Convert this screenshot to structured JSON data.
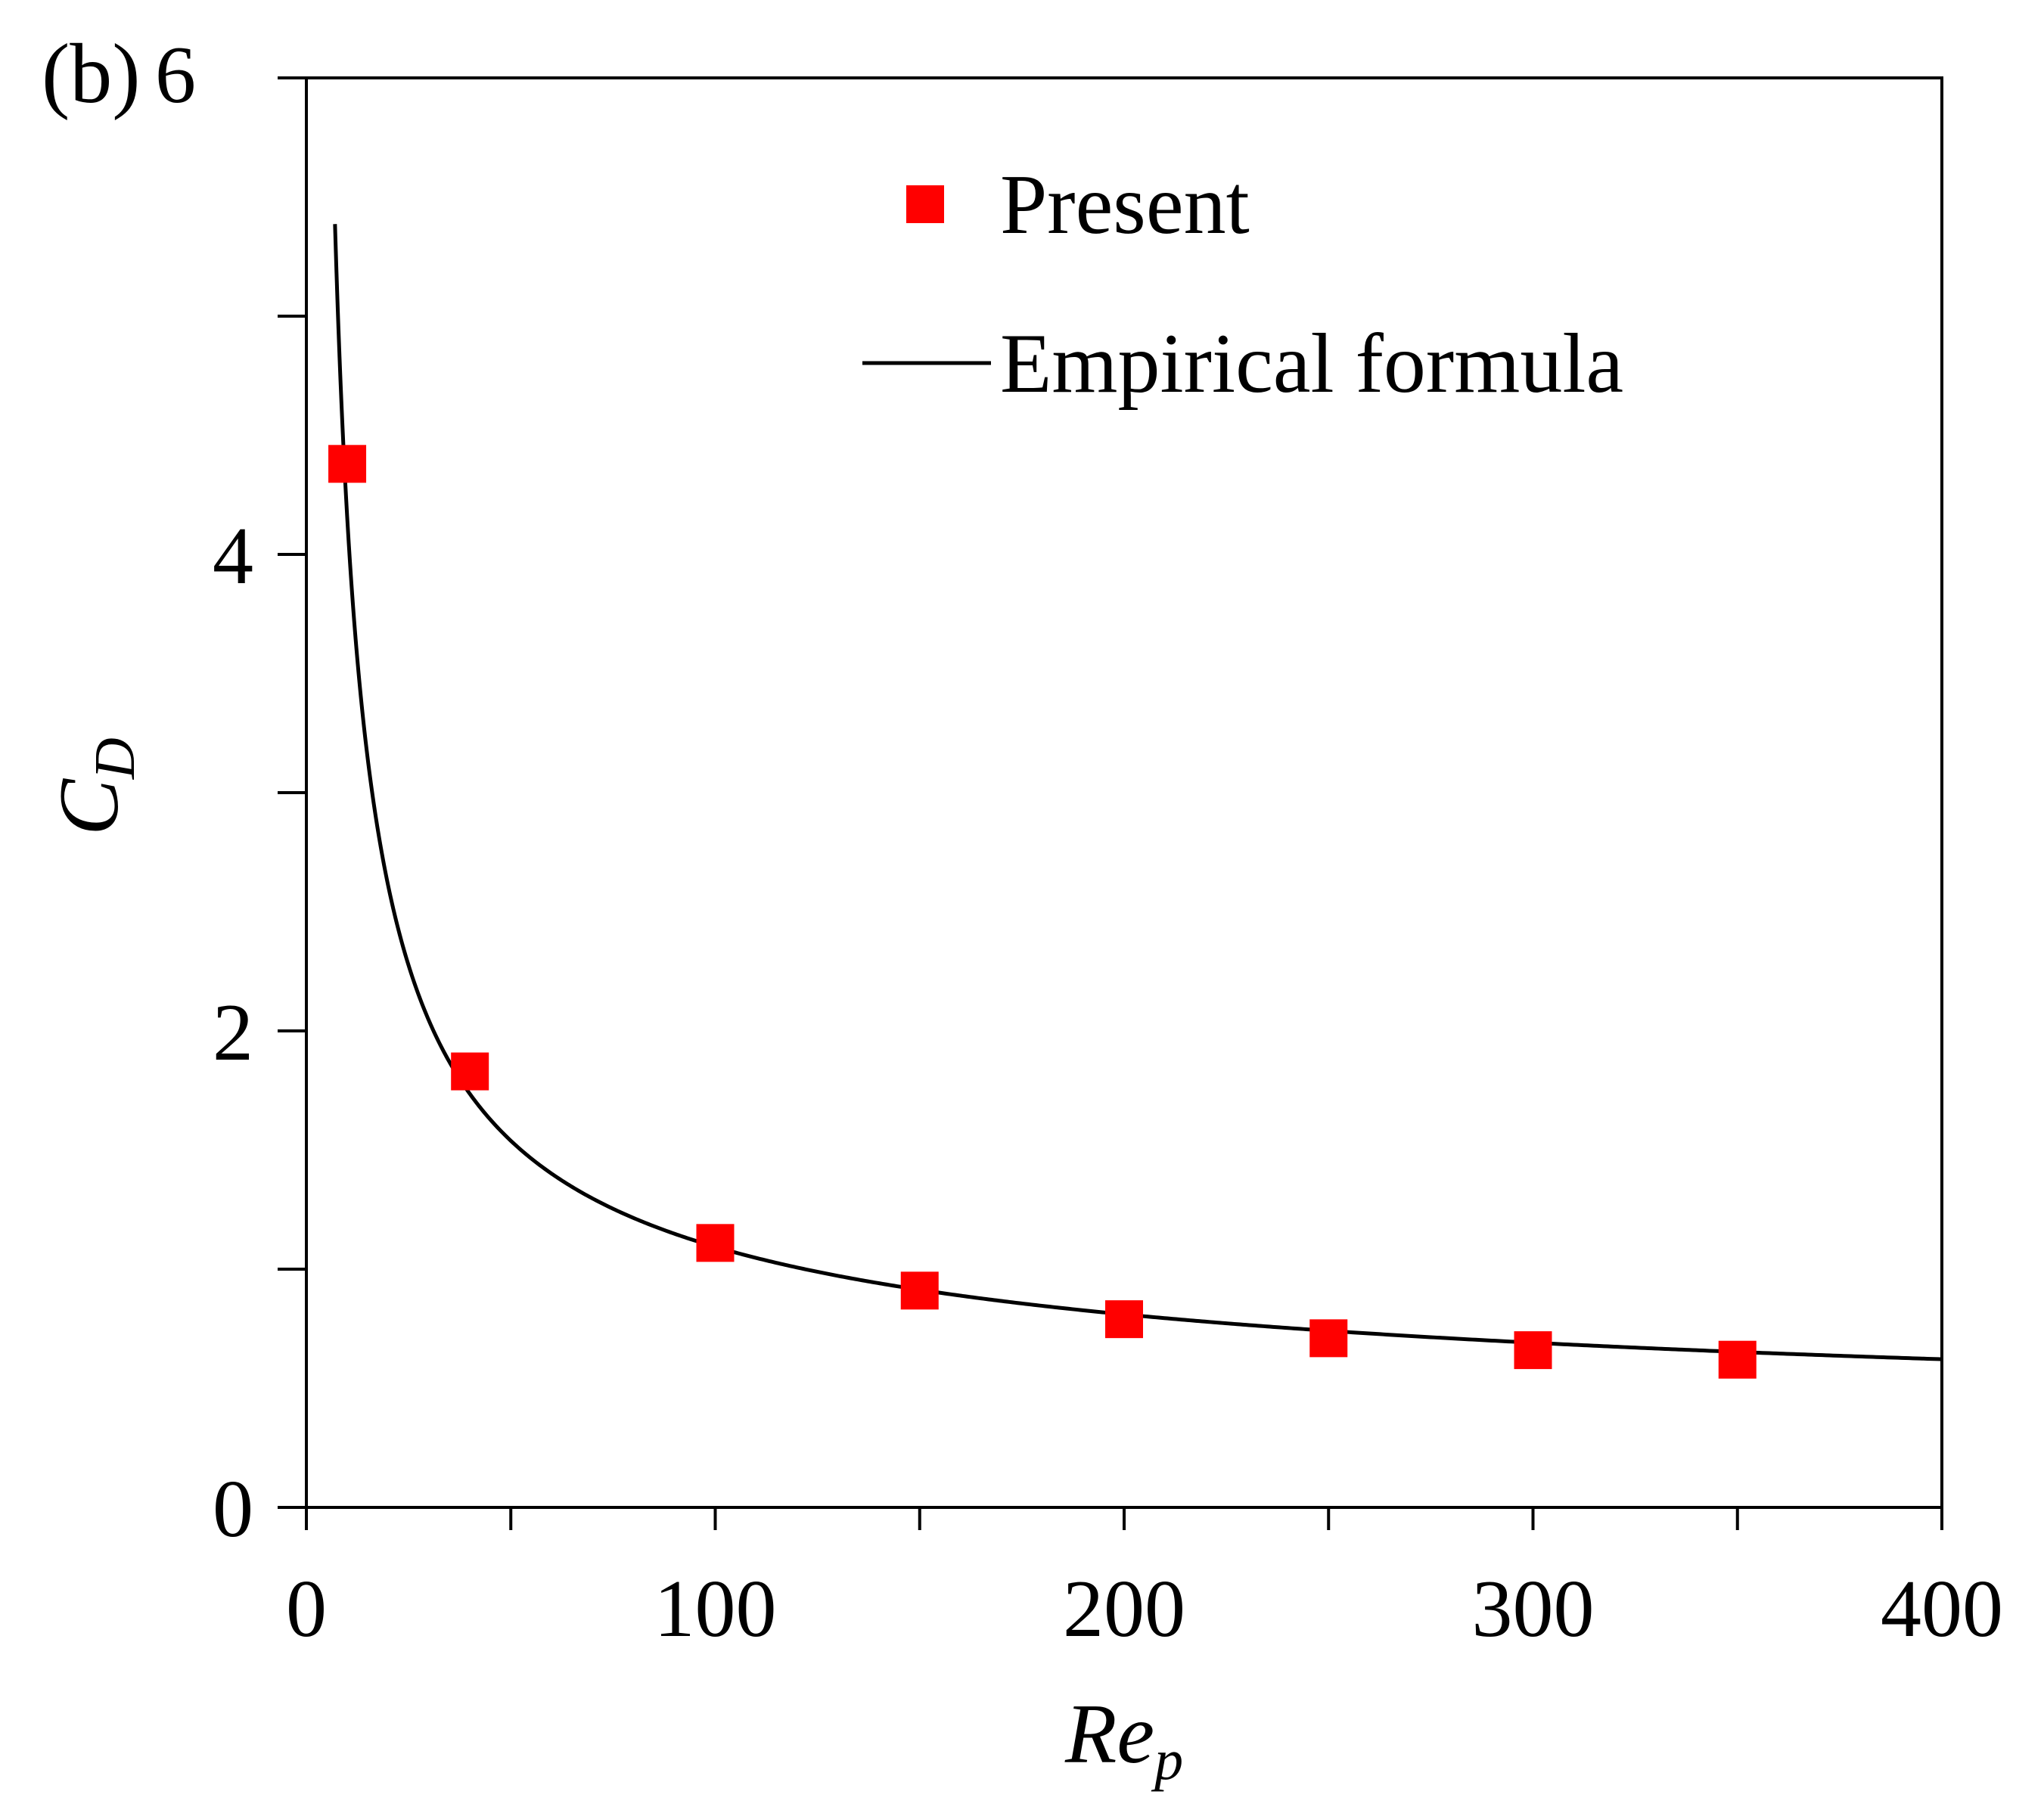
{
  "chart_data": {
    "type": "scatter",
    "panel_label": "(b)",
    "xlabel": {
      "main": "Re",
      "sub": "p"
    },
    "ylabel": {
      "main": "C",
      "sub": "D"
    },
    "xlim": [
      0,
      400
    ],
    "ylim": [
      0,
      6
    ],
    "x_ticks": [
      0,
      100,
      200,
      300,
      400
    ],
    "x_minor_ticks": [
      50,
      150,
      250,
      350
    ],
    "y_ticks": [
      0,
      2,
      4,
      6
    ],
    "y_minor_ticks": [
      1,
      3,
      5
    ],
    "grid": false,
    "legend_position": "top-right",
    "series": [
      {
        "name": "Present",
        "kind": "markers",
        "marker": "square",
        "color": "#ff0000",
        "x": [
          10,
          40,
          100,
          150,
          200,
          250,
          300,
          350
        ],
        "y": [
          4.38,
          1.83,
          1.11,
          0.91,
          0.79,
          0.71,
          0.66,
          0.62
        ]
      },
      {
        "name": "Empirical formula",
        "kind": "line",
        "color": "#000000",
        "formula": "24/Re*(1+0.15*Re^0.687)+0.42/(1+42500*Re^-1.16)",
        "x_range": [
          7,
          400
        ]
      }
    ]
  }
}
